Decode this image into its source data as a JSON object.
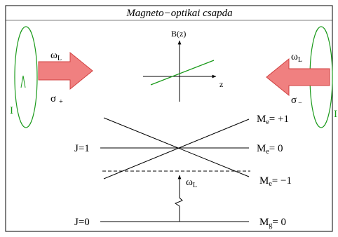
{
  "title": "Magneto−optikai csapda",
  "left_beam": {
    "frequency": {
      "symbol": "ω",
      "sub": "L"
    },
    "polarization": {
      "symbol": "σ",
      "sub": "+"
    },
    "current": "I"
  },
  "right_beam": {
    "frequency": {
      "symbol": "ω",
      "sub": "L"
    },
    "polarization": {
      "symbol": "σ",
      "sub": "−"
    },
    "current": "I"
  },
  "field_plot": {
    "y_label": "B(z)",
    "x_label": "z"
  },
  "levels": {
    "excited": {
      "label": "J=1",
      "sublevels": [
        {
          "symbol": "M",
          "sub": "e",
          "value": "= +1"
        },
        {
          "symbol": "M",
          "sub": "e",
          "value": "= 0"
        },
        {
          "symbol": "M",
          "sub": "e",
          "value": "= −1"
        }
      ]
    },
    "ground": {
      "label": "J=0",
      "sublevel": {
        "symbol": "M",
        "sub": "g",
        "value": "= 0"
      }
    }
  },
  "transition": {
    "symbol": "ω",
    "sub": "L"
  }
}
